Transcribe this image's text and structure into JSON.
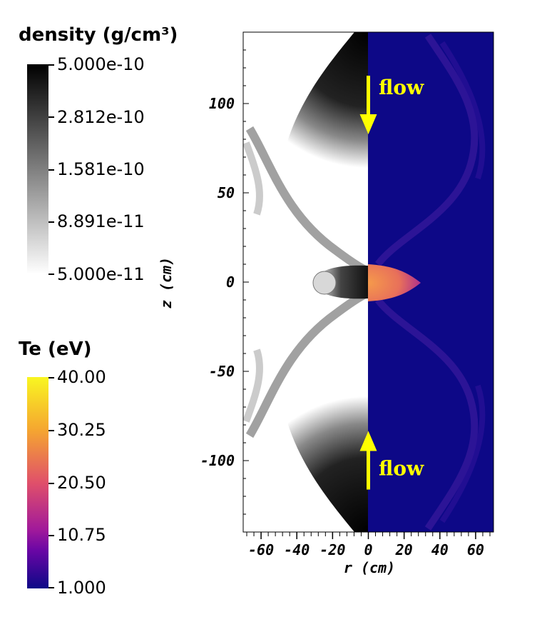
{
  "density_colorbar": {
    "title": "density (g/cm³)",
    "ticks": [
      "5.000e-10",
      "2.812e-10",
      "1.581e-10",
      "8.891e-11",
      "5.000e-11"
    ],
    "gradient": [
      "#000000",
      "#ffffff"
    ]
  },
  "te_colorbar": {
    "title": "Te (eV)",
    "ticks": [
      "40.00",
      "30.25",
      "20.50",
      "10.75",
      "1.000"
    ],
    "gradient": [
      "#f9f621",
      "#f5a630",
      "#e0506a",
      "#a21a9a",
      "#6a06a5",
      "#0d0887"
    ]
  },
  "chart_data": {
    "type": "heatmap",
    "xlabel": "r (cm)",
    "ylabel": "z (cm)",
    "xlim": [
      -70,
      70
    ],
    "ylim": [
      -140,
      140
    ],
    "x_ticks": [
      -60,
      -40,
      -20,
      0,
      20,
      40,
      60
    ],
    "y_ticks": [
      100,
      50,
      0,
      -50,
      -100
    ],
    "annotations": [
      {
        "text": "flow",
        "x": 5,
        "z": 110,
        "arrow_dir": "down"
      },
      {
        "text": "flow",
        "x": 5,
        "z": -105,
        "arrow_dir": "up"
      }
    ],
    "left_half": "density",
    "right_half": "Te",
    "colors": {
      "annotation": "#ffff00",
      "te_background": "#0d0887"
    }
  }
}
